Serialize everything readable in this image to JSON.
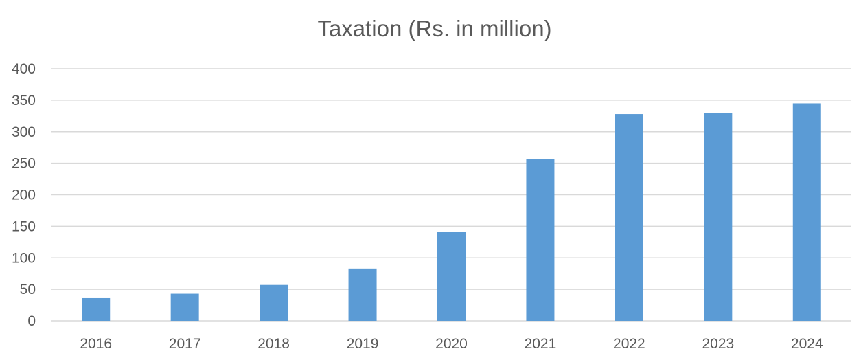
{
  "chart_data": {
    "type": "bar",
    "title": "Taxation (Rs. in million)",
    "categories": [
      "2016",
      "2017",
      "2018",
      "2019",
      "2020",
      "2021",
      "2022",
      "2023",
      "2024"
    ],
    "values": [
      36,
      43,
      57,
      83,
      141,
      257,
      328,
      330,
      345
    ],
    "ylim": [
      0,
      400
    ],
    "yticks": [
      "0",
      "50",
      "100",
      "150",
      "200",
      "250",
      "300",
      "350",
      "400"
    ],
    "grid": true,
    "legend": "none",
    "bar_color": "#5b9bd5"
  }
}
